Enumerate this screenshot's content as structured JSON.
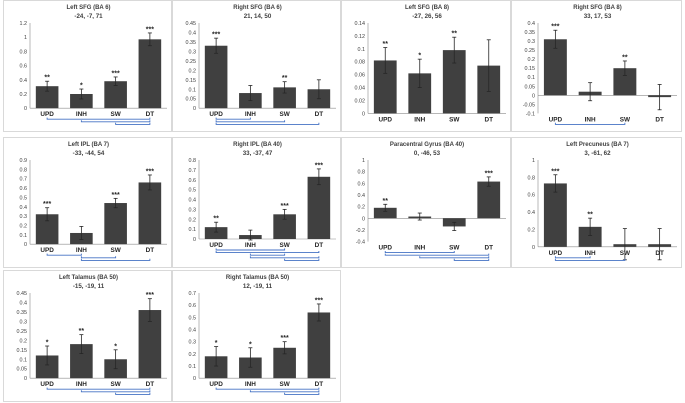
{
  "chart_data": [
    {
      "type": "bar",
      "title": "Left SFG (BA 6)",
      "coords": "-24, -7, 71",
      "categories": [
        "UPD",
        "INH",
        "SW",
        "DT"
      ],
      "values": [
        0.31,
        0.2,
        0.38,
        0.97
      ],
      "errors": [
        0.07,
        0.07,
        0.06,
        0.09
      ],
      "sig": [
        "**",
        "*",
        "***",
        "***"
      ],
      "ylim": [
        0,
        1.2
      ],
      "yticks": [
        0,
        0.2,
        0.4,
        0.6,
        0.8,
        1,
        1.2
      ],
      "brackets": [
        [
          0,
          3
        ],
        [
          1,
          3
        ],
        [
          2,
          3
        ]
      ]
    },
    {
      "type": "bar",
      "title": "Right SFG (BA 6)",
      "coords": "21, 14, 50",
      "categories": [
        "UPD",
        "INH",
        "SW",
        "DT"
      ],
      "values": [
        0.33,
        0.08,
        0.11,
        0.1
      ],
      "errors": [
        0.04,
        0.04,
        0.03,
        0.05
      ],
      "sig": [
        "***",
        "",
        "**",
        ""
      ],
      "ylim": [
        0,
        0.45
      ],
      "yticks": [
        0,
        0.05,
        0.1,
        0.15,
        0.2,
        0.25,
        0.3,
        0.35,
        0.4,
        0.45
      ],
      "brackets": [
        [
          0,
          1
        ],
        [
          0,
          2
        ],
        [
          0,
          3
        ]
      ]
    },
    {
      "type": "bar",
      "title": "Left SFG (BA 8)",
      "coords": "-27, 26, 56",
      "categories": [
        "UPD",
        "INH",
        "SW",
        "DT"
      ],
      "values": [
        0.082,
        0.062,
        0.098,
        0.074
      ],
      "errors": [
        0.02,
        0.022,
        0.02,
        0.04
      ],
      "sig": [
        "**",
        "*",
        "**",
        ""
      ],
      "ylim": [
        0,
        0.14
      ],
      "yticks": [
        0,
        0.02,
        0.04,
        0.06,
        0.08,
        0.1,
        0.12,
        0.14
      ],
      "brackets": []
    },
    {
      "type": "bar",
      "title": "Right SFG (BA 8)",
      "coords": "33, 17, 53",
      "categories": [
        "UPD",
        "INH",
        "SW",
        "DT"
      ],
      "values": [
        0.31,
        0.02,
        0.15,
        -0.01
      ],
      "errors": [
        0.05,
        0.05,
        0.04,
        0.07
      ],
      "sig": [
        "***",
        "",
        "**",
        ""
      ],
      "ylim": [
        -0.1,
        0.4
      ],
      "yticks": [
        -0.1,
        -0.05,
        0,
        0.05,
        0.1,
        0.15,
        0.2,
        0.25,
        0.3,
        0.35,
        0.4
      ],
      "brackets": [
        [
          0,
          2
        ]
      ]
    },
    {
      "type": "bar",
      "title": "Left IPL (BA 7)",
      "coords": "-33, -44, 54",
      "categories": [
        "UPD",
        "INH",
        "SW",
        "DT"
      ],
      "values": [
        0.32,
        0.12,
        0.44,
        0.66
      ],
      "errors": [
        0.07,
        0.07,
        0.05,
        0.08
      ],
      "sig": [
        "***",
        "",
        "***",
        "***"
      ],
      "ylim": [
        0,
        0.9
      ],
      "yticks": [
        0,
        0.1,
        0.2,
        0.3,
        0.4,
        0.5,
        0.6,
        0.7,
        0.8,
        0.9
      ],
      "brackets": [
        [
          0,
          1
        ],
        [
          1,
          2
        ],
        [
          1,
          3
        ]
      ]
    },
    {
      "type": "bar",
      "title": "Right IPL (BA 40)",
      "coords": "33, -37, 47",
      "categories": [
        "UPD",
        "INH",
        "SW",
        "DT"
      ],
      "values": [
        0.12,
        0.04,
        0.25,
        0.63
      ],
      "errors": [
        0.05,
        0.05,
        0.05,
        0.08
      ],
      "sig": [
        "**",
        "",
        "***",
        "***"
      ],
      "ylim": [
        0,
        0.8
      ],
      "yticks": [
        0,
        0.1,
        0.2,
        0.3,
        0.4,
        0.5,
        0.6,
        0.7,
        0.8
      ],
      "brackets": [
        [
          0,
          2
        ],
        [
          0,
          3
        ],
        [
          1,
          2
        ],
        [
          1,
          3
        ],
        [
          2,
          3
        ]
      ]
    },
    {
      "type": "bar",
      "title": "Paracentral Gyrus (BA 40)",
      "coords": "0, -46, 53",
      "categories": [
        "UPD",
        "INH",
        "SW",
        "DT"
      ],
      "values": [
        0.18,
        0.03,
        -0.14,
        0.63
      ],
      "errors": [
        0.06,
        0.06,
        0.07,
        0.08
      ],
      "sig": [
        "**",
        "",
        "",
        "***"
      ],
      "ylim": [
        -0.4,
        1
      ],
      "yticks": [
        -0.4,
        -0.2,
        0,
        0.2,
        0.4,
        0.6,
        0.8,
        1
      ],
      "brackets": [
        [
          0,
          2
        ],
        [
          0,
          3
        ],
        [
          1,
          3
        ],
        [
          2,
          3
        ]
      ]
    },
    {
      "type": "bar",
      "title": "Left Precuneus (BA 7)",
      "coords": "3, -61, 62",
      "categories": [
        "UPD",
        "INH",
        "SW",
        "DT"
      ],
      "values": [
        0.73,
        0.23,
        0.03,
        0.03
      ],
      "errors": [
        0.1,
        0.1,
        0.18,
        0.18
      ],
      "sig": [
        "***",
        "**",
        "",
        ""
      ],
      "ylim": [
        0,
        1
      ],
      "yticks": [
        0,
        0.2,
        0.4,
        0.6,
        0.8,
        1
      ],
      "brackets": [
        [
          0,
          1
        ],
        [
          0,
          2
        ]
      ]
    },
    {
      "type": "bar",
      "title": "Left Talamus (BA 50)",
      "coords": "-15, -19, 11",
      "categories": [
        "UPD",
        "INH",
        "SW",
        "DT"
      ],
      "values": [
        0.12,
        0.18,
        0.1,
        0.36
      ],
      "errors": [
        0.05,
        0.05,
        0.05,
        0.06
      ],
      "sig": [
        "*",
        "**",
        "*",
        "***"
      ],
      "ylim": [
        0,
        0.45
      ],
      "yticks": [
        0,
        0.05,
        0.1,
        0.15,
        0.2,
        0.25,
        0.3,
        0.35,
        0.4,
        0.45
      ],
      "brackets": [
        [
          0,
          3
        ],
        [
          1,
          3
        ],
        [
          2,
          3
        ]
      ]
    },
    {
      "type": "bar",
      "title": "Right Talamus (BA 50)",
      "coords": "12, -19, 11",
      "categories": [
        "UPD",
        "INH",
        "SW",
        "DT"
      ],
      "values": [
        0.18,
        0.17,
        0.25,
        0.54
      ],
      "errors": [
        0.08,
        0.08,
        0.05,
        0.07
      ],
      "sig": [
        "*",
        "*",
        "***",
        "***"
      ],
      "ylim": [
        0,
        0.7
      ],
      "yticks": [
        0,
        0.1,
        0.2,
        0.3,
        0.4,
        0.5,
        0.6,
        0.7
      ],
      "brackets": [
        [
          0,
          3
        ],
        [
          1,
          3
        ],
        [
          2,
          3
        ]
      ]
    }
  ]
}
